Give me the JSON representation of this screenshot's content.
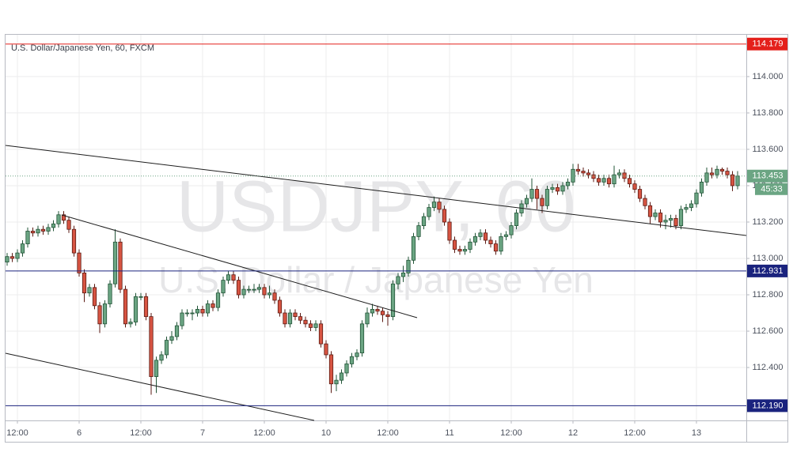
{
  "chart_data": {
    "type": "candlestick",
    "title": "U.S. Dollar/Japanese Yen, 60, FXCM",
    "watermark": "USDJPY, 60",
    "watermark_subtitle": "U.S. Dollar / Japanese Yen",
    "categories": [
      null,
      null,
      "12:00",
      null,
      null,
      null,
      null,
      null,
      null,
      null,
      null,
      null,
      null,
      null,
      "6",
      null,
      null,
      null,
      null,
      null,
      null,
      null,
      null,
      null,
      null,
      null,
      "12:00",
      null,
      null,
      null,
      null,
      null,
      null,
      null,
      null,
      null,
      null,
      null,
      "7",
      null,
      null,
      null,
      null,
      null,
      null,
      null,
      null,
      null,
      null,
      null,
      "12:00",
      null,
      null,
      null,
      null,
      null,
      null,
      null,
      null,
      null,
      null,
      null,
      "10",
      null,
      null,
      null,
      null,
      null,
      null,
      null,
      null,
      null,
      null,
      null,
      "12:00",
      null,
      null,
      null,
      null,
      null,
      null,
      null,
      null,
      null,
      null,
      null,
      "11",
      null,
      null,
      null,
      null,
      null,
      null,
      null,
      null,
      null,
      null,
      null,
      "12:00",
      null,
      null,
      null,
      null,
      null,
      null,
      null,
      null,
      null,
      null,
      null,
      "12",
      null,
      null,
      null,
      null,
      null,
      null,
      null,
      null,
      null,
      null,
      null,
      "12:00",
      null,
      null,
      null,
      null,
      null,
      null,
      null,
      null,
      null,
      null,
      null,
      "13",
      null,
      null,
      null,
      null,
      null,
      null,
      null,
      null
    ],
    "open": [
      112.98,
      113.01,
      113.0,
      113.03,
      113.08,
      113.15,
      113.14,
      113.16,
      113.15,
      113.17,
      113.19,
      113.24,
      113.21,
      113.16,
      113.03,
      112.92,
      112.81,
      112.84,
      112.74,
      112.64,
      112.75,
      112.86,
      113.09,
      112.83,
      112.64,
      112.65,
      112.79,
      112.79,
      112.68,
      112.35,
      112.44,
      112.47,
      112.55,
      112.57,
      112.63,
      112.7,
      112.7,
      112.7,
      112.72,
      112.7,
      112.75,
      112.73,
      112.81,
      112.88,
      112.91,
      112.88,
      112.8,
      112.83,
      112.83,
      112.83,
      112.84,
      112.8,
      112.81,
      112.77,
      112.7,
      112.64,
      112.7,
      112.68,
      112.66,
      112.64,
      112.62,
      112.64,
      112.53,
      112.47,
      112.31,
      112.33,
      112.37,
      112.42,
      112.46,
      112.48,
      112.64,
      112.7,
      112.72,
      112.71,
      112.69,
      112.68,
      112.86,
      112.9,
      112.92,
      112.99,
      113.12,
      113.18,
      113.23,
      113.28,
      113.31,
      113.27,
      113.2,
      113.1,
      113.05,
      113.04,
      113.05,
      113.09,
      113.12,
      113.14,
      113.1,
      113.08,
      113.04,
      113.12,
      113.13,
      113.18,
      113.25,
      113.3,
      113.33,
      113.38,
      113.33,
      113.29,
      113.38,
      113.39,
      113.37,
      113.4,
      113.42,
      113.49,
      113.48,
      113.47,
      113.46,
      113.44,
      113.42,
      113.44,
      113.41,
      113.46,
      113.47,
      113.44,
      113.41,
      113.38,
      113.33,
      113.29,
      113.23,
      113.25,
      113.2,
      113.21,
      113.22,
      113.18,
      113.27,
      113.28,
      113.3,
      113.36,
      113.42,
      113.47,
      113.46,
      113.49,
      113.48,
      113.46,
      113.4
    ],
    "high": [
      113.03,
      113.03,
      113.05,
      113.1,
      113.17,
      113.17,
      113.18,
      113.18,
      113.19,
      113.21,
      113.26,
      113.26,
      113.23,
      113.18,
      113.05,
      112.94,
      112.86,
      112.86,
      112.76,
      112.77,
      112.88,
      113.16,
      113.11,
      112.85,
      112.67,
      112.81,
      112.81,
      112.81,
      112.7,
      112.46,
      112.49,
      112.57,
      112.6,
      112.65,
      112.72,
      112.72,
      112.72,
      112.74,
      112.74,
      112.77,
      112.77,
      112.83,
      112.9,
      112.93,
      112.93,
      112.9,
      112.85,
      112.85,
      112.86,
      112.86,
      112.86,
      112.85,
      112.83,
      112.79,
      112.72,
      112.72,
      112.72,
      112.7,
      112.68,
      112.66,
      112.66,
      112.66,
      112.55,
      112.49,
      112.36,
      112.39,
      112.44,
      112.48,
      112.5,
      112.66,
      112.73,
      112.75,
      112.74,
      112.73,
      112.71,
      112.88,
      112.92,
      112.96,
      113.01,
      113.14,
      113.2,
      113.25,
      113.3,
      113.34,
      113.33,
      113.29,
      113.22,
      113.12,
      113.07,
      113.07,
      113.11,
      113.14,
      113.16,
      113.16,
      113.12,
      113.1,
      113.14,
      113.15,
      113.2,
      113.27,
      113.32,
      113.35,
      113.44,
      113.4,
      113.35,
      113.4,
      113.41,
      113.41,
      113.42,
      113.44,
      113.52,
      113.52,
      113.5,
      113.49,
      113.48,
      113.46,
      113.46,
      113.46,
      113.51,
      113.49,
      113.49,
      113.46,
      113.43,
      113.4,
      113.35,
      113.31,
      113.27,
      113.27,
      113.24,
      113.24,
      113.24,
      113.29,
      113.3,
      113.32,
      113.38,
      113.44,
      113.5,
      113.5,
      113.51,
      113.5,
      113.5,
      113.48,
      113.48
    ],
    "low": [
      112.96,
      112.98,
      112.98,
      113.01,
      113.06,
      113.12,
      113.12,
      113.13,
      113.13,
      113.15,
      113.17,
      113.19,
      113.14,
      113.01,
      112.9,
      112.76,
      112.79,
      112.72,
      112.59,
      112.62,
      112.73,
      112.84,
      112.81,
      112.62,
      112.62,
      112.63,
      112.77,
      112.66,
      112.25,
      112.26,
      112.42,
      112.45,
      112.53,
      112.55,
      112.61,
      112.68,
      112.66,
      112.68,
      112.68,
      112.68,
      112.71,
      112.71,
      112.79,
      112.86,
      112.86,
      112.78,
      112.78,
      112.81,
      112.81,
      112.81,
      112.78,
      112.78,
      112.75,
      112.68,
      112.62,
      112.62,
      112.66,
      112.64,
      112.62,
      112.6,
      112.6,
      112.51,
      112.45,
      112.26,
      112.27,
      112.31,
      112.35,
      112.4,
      112.44,
      112.46,
      112.62,
      112.68,
      112.69,
      112.65,
      112.63,
      112.66,
      112.83,
      112.87,
      112.9,
      112.97,
      113.1,
      113.16,
      113.21,
      113.26,
      113.25,
      113.18,
      113.08,
      113.03,
      113.02,
      113.02,
      113.03,
      113.07,
      113.1,
      113.08,
      113.06,
      113.02,
      113.02,
      113.1,
      113.11,
      113.16,
      113.23,
      113.28,
      113.31,
      113.27,
      113.25,
      113.27,
      113.36,
      113.35,
      113.35,
      113.38,
      113.4,
      113.46,
      113.45,
      113.44,
      113.42,
      113.4,
      113.4,
      113.39,
      113.39,
      113.44,
      113.42,
      113.39,
      113.36,
      113.31,
      113.27,
      113.19,
      113.21,
      113.17,
      113.16,
      113.17,
      113.16,
      113.16,
      113.25,
      113.26,
      113.28,
      113.34,
      113.4,
      113.44,
      113.44,
      113.46,
      113.44,
      113.37,
      113.38
    ],
    "close": [
      113.01,
      113.0,
      113.03,
      113.08,
      113.15,
      113.14,
      113.16,
      113.15,
      113.17,
      113.19,
      113.24,
      113.21,
      113.16,
      113.03,
      112.92,
      112.81,
      112.84,
      112.74,
      112.64,
      112.75,
      112.86,
      113.09,
      112.83,
      112.64,
      112.65,
      112.79,
      112.79,
      112.68,
      112.35,
      112.44,
      112.47,
      112.55,
      112.57,
      112.63,
      112.7,
      112.7,
      112.7,
      112.72,
      112.7,
      112.75,
      112.73,
      112.81,
      112.88,
      112.91,
      112.88,
      112.8,
      112.83,
      112.83,
      112.83,
      112.84,
      112.8,
      112.81,
      112.77,
      112.7,
      112.64,
      112.7,
      112.68,
      112.66,
      112.64,
      112.62,
      112.64,
      112.53,
      112.47,
      112.31,
      112.33,
      112.37,
      112.42,
      112.46,
      112.48,
      112.64,
      112.7,
      112.72,
      112.71,
      112.69,
      112.68,
      112.86,
      112.9,
      112.92,
      112.99,
      113.12,
      113.18,
      113.23,
      113.28,
      113.31,
      113.27,
      113.2,
      113.1,
      113.05,
      113.04,
      113.05,
      113.09,
      113.12,
      113.14,
      113.1,
      113.08,
      113.04,
      113.12,
      113.13,
      113.18,
      113.25,
      113.3,
      113.33,
      113.38,
      113.33,
      113.29,
      113.38,
      113.39,
      113.37,
      113.4,
      113.42,
      113.49,
      113.48,
      113.47,
      113.46,
      113.44,
      113.42,
      113.44,
      113.41,
      113.46,
      113.47,
      113.44,
      113.41,
      113.38,
      113.33,
      113.29,
      113.23,
      113.25,
      113.2,
      113.21,
      113.22,
      113.18,
      113.27,
      113.28,
      113.3,
      113.36,
      113.42,
      113.47,
      113.46,
      113.49,
      113.48,
      113.46,
      113.4,
      113.453
    ],
    "up_color": "#6ba583",
    "up_border": "#225437",
    "down_color": "#d75442",
    "down_border": "#5b1a13",
    "ylim": [
      112.109,
      114.23
    ],
    "yticks": [
      {
        "value": 112.4,
        "label": "112.400"
      },
      {
        "value": 112.6,
        "label": "112.600"
      },
      {
        "value": 112.8,
        "label": "112.800"
      },
      {
        "value": 113,
        "label": "113.000"
      },
      {
        "value": 113.2,
        "label": "113.200"
      },
      {
        "value": 113.4,
        "label": "113.400"
      },
      {
        "value": 113.6,
        "label": "113.600"
      },
      {
        "value": 113.8,
        "label": "113.800"
      },
      {
        "value": 114,
        "label": "114.000"
      }
    ],
    "grid": true,
    "levels": [
      {
        "value": 114.179,
        "label": "114.179",
        "color": "#e4201b"
      },
      {
        "value": 112.931,
        "label": "112.931",
        "color": "#1a237e"
      },
      {
        "value": 112.19,
        "label": "112.190",
        "color": "#1a237e"
      }
    ],
    "last_price": {
      "value": 113.453,
      "label": "113.453",
      "countdown": "45:33",
      "color": "#6ba583"
    }
  }
}
